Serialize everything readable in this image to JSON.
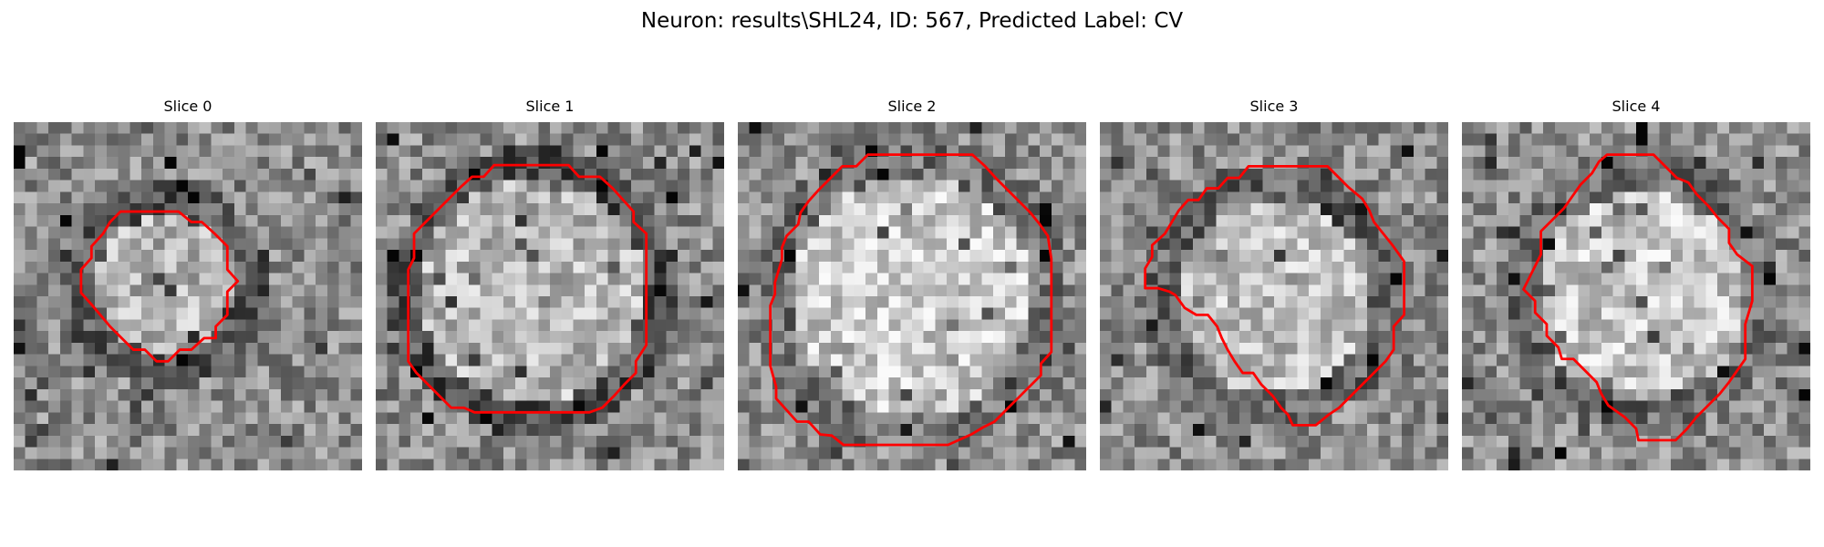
{
  "figure": {
    "title": "Neuron: results\\SHL24, ID: 567, Predicted Label: CV",
    "contour_color": "#ff0000"
  },
  "slices": [
    {
      "title": "Slice 0"
    },
    {
      "title": "Slice 1"
    },
    {
      "title": "Slice 2"
    },
    {
      "title": "Slice 3"
    },
    {
      "title": "Slice 4"
    }
  ]
}
